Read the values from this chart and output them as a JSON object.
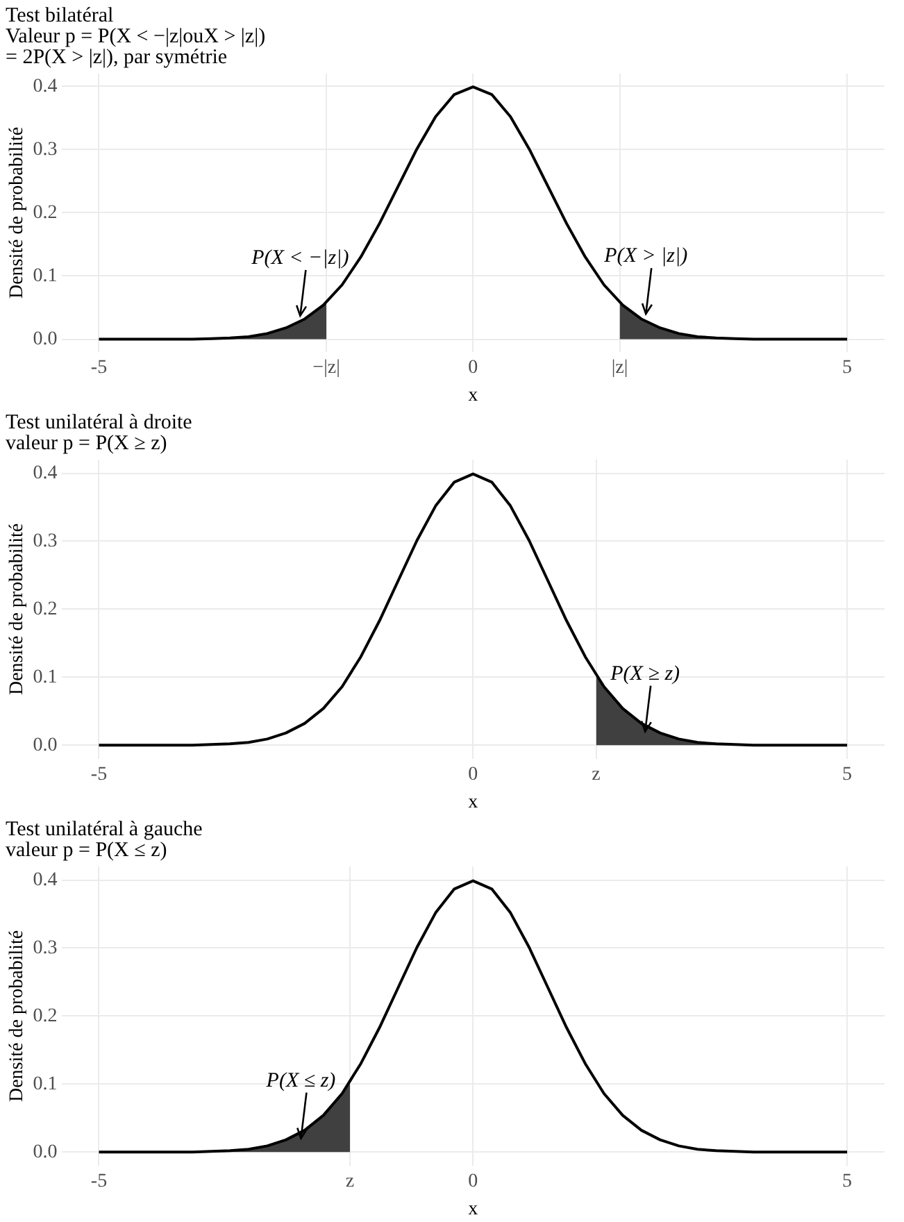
{
  "chart_data": [
    {
      "type": "line",
      "title": "Test bilatéral",
      "subtitle": "Valeur p = P(X < −|z|ouX > |z|)\n= 2P(X > |z|), par symétrie",
      "xlabel": "x",
      "ylabel": "Densité de probabilité",
      "xlim": [
        -5.5,
        5.5
      ],
      "ylim": [
        -0.02,
        0.42
      ],
      "xticks": [
        -5,
        {
          "value": -1.96,
          "label": "−|z|"
        },
        0,
        {
          "value": 1.96,
          "label": "|z|"
        },
        5
      ],
      "yticks": [
        {
          "value": 0,
          "label": "0.0"
        },
        {
          "value": 0.1,
          "label": "0.1"
        },
        {
          "value": 0.2,
          "label": "0.2"
        },
        {
          "value": 0.3,
          "label": "0.3"
        },
        {
          "value": 0.4,
          "label": "0.4"
        }
      ],
      "grid": true,
      "legend": false,
      "marker": "none",
      "line_style": "solid",
      "series": [
        {
          "type": "line",
          "color": "#000000",
          "x": [
            -5,
            -4.75,
            -4.5,
            -4.25,
            -4,
            -3.75,
            -3.5,
            -3.25,
            -3,
            -2.75,
            -2.5,
            -2.25,
            -2,
            -1.75,
            -1.5,
            -1.25,
            -1,
            -0.75,
            -0.5,
            -0.25,
            0,
            0.25,
            0.5,
            0.75,
            1,
            1.25,
            1.5,
            1.75,
            2,
            2.25,
            2.5,
            2.75,
            3,
            3.25,
            3.5,
            3.75,
            4,
            4.25,
            4.5,
            4.75,
            5
          ],
          "values": [
            0,
            0,
            0,
            0,
            0,
            0,
            0.001,
            0.002,
            0.004,
            0.009,
            0.018,
            0.032,
            0.054,
            0.086,
            0.13,
            0.183,
            0.242,
            0.301,
            0.352,
            0.387,
            0.399,
            0.387,
            0.352,
            0.301,
            0.242,
            0.183,
            0.13,
            0.086,
            0.054,
            0.032,
            0.018,
            0.009,
            0.004,
            0.002,
            0.001,
            0,
            0,
            0,
            0,
            0,
            0
          ]
        },
        {
          "type": "area",
          "color": "#404040",
          "x": [
            -5,
            -4.5,
            -4,
            -3.5,
            -3,
            -2.75,
            -2.5,
            -2.25,
            -1.96
          ],
          "values": [
            0,
            0,
            0,
            0.001,
            0.004,
            0.009,
            0.018,
            0.032,
            0.058
          ]
        },
        {
          "type": "area",
          "color": "#404040",
          "x": [
            1.96,
            2.25,
            2.5,
            2.75,
            3,
            3.5,
            4,
            4.5,
            5
          ],
          "values": [
            0.058,
            0.032,
            0.018,
            0.009,
            0.004,
            0.001,
            0,
            0,
            0
          ]
        }
      ],
      "annotations": [
        {
          "text": "P(X < −|z|)",
          "x": -2.31,
          "y": 0.037
        },
        {
          "text": "P(X > |z|)",
          "x": 2.31,
          "y": 0.04
        }
      ]
    },
    {
      "type": "line",
      "title": "Test unilatéral à droite",
      "subtitle": "valeur p = P(X ≥ z)",
      "xlabel": "x",
      "ylabel": "Densité de probabilité",
      "xlim": [
        -5.5,
        5.5
      ],
      "ylim": [
        -0.02,
        0.42
      ],
      "xticks": [
        -5,
        0,
        {
          "value": 1.645,
          "label": "z"
        },
        5
      ],
      "yticks": [
        {
          "value": 0,
          "label": "0.0"
        },
        {
          "value": 0.1,
          "label": "0.1"
        },
        {
          "value": 0.2,
          "label": "0.2"
        },
        {
          "value": 0.3,
          "label": "0.3"
        },
        {
          "value": 0.4,
          "label": "0.4"
        }
      ],
      "grid": true,
      "legend": false,
      "marker": "none",
      "line_style": "solid",
      "series": [
        {
          "type": "line",
          "color": "#000000",
          "x": [
            -5,
            -4.75,
            -4.5,
            -4.25,
            -4,
            -3.75,
            -3.5,
            -3.25,
            -3,
            -2.75,
            -2.5,
            -2.25,
            -2,
            -1.75,
            -1.5,
            -1.25,
            -1,
            -0.75,
            -0.5,
            -0.25,
            0,
            0.25,
            0.5,
            0.75,
            1,
            1.25,
            1.5,
            1.75,
            2,
            2.25,
            2.5,
            2.75,
            3,
            3.25,
            3.5,
            3.75,
            4,
            4.25,
            4.5,
            4.75,
            5
          ],
          "values": [
            0,
            0,
            0,
            0,
            0,
            0,
            0.001,
            0.002,
            0.004,
            0.009,
            0.018,
            0.032,
            0.054,
            0.086,
            0.13,
            0.183,
            0.242,
            0.301,
            0.352,
            0.387,
            0.399,
            0.387,
            0.352,
            0.301,
            0.242,
            0.183,
            0.13,
            0.086,
            0.054,
            0.032,
            0.018,
            0.009,
            0.004,
            0.002,
            0.001,
            0,
            0,
            0,
            0,
            0,
            0
          ]
        },
        {
          "type": "area",
          "color": "#404040",
          "x": [
            1.645,
            1.75,
            2,
            2.25,
            2.5,
            2.75,
            3,
            3.5,
            4,
            4.5,
            5
          ],
          "values": [
            0.103,
            0.086,
            0.054,
            0.032,
            0.018,
            0.009,
            0.004,
            0.001,
            0,
            0,
            0
          ]
        }
      ],
      "annotations": [
        {
          "text": "P(X ≥ z)",
          "x": 2.3,
          "y": 0.02
        }
      ]
    },
    {
      "type": "line",
      "title": "Test unilatéral à gauche",
      "subtitle": "valeur p = P(X ≤ z)",
      "xlabel": "x",
      "ylabel": "Densité de probabilité",
      "xlim": [
        -5.5,
        5.5
      ],
      "ylim": [
        -0.02,
        0.42
      ],
      "xticks": [
        -5,
        {
          "value": -1.645,
          "label": "z"
        },
        0,
        5
      ],
      "yticks": [
        {
          "value": 0,
          "label": "0.0"
        },
        {
          "value": 0.1,
          "label": "0.1"
        },
        {
          "value": 0.2,
          "label": "0.2"
        },
        {
          "value": 0.3,
          "label": "0.3"
        },
        {
          "value": 0.4,
          "label": "0.4"
        }
      ],
      "grid": true,
      "legend": false,
      "marker": "none",
      "line_style": "solid",
      "series": [
        {
          "type": "line",
          "color": "#000000",
          "x": [
            -5,
            -4.75,
            -4.5,
            -4.25,
            -4,
            -3.75,
            -3.5,
            -3.25,
            -3,
            -2.75,
            -2.5,
            -2.25,
            -2,
            -1.75,
            -1.5,
            -1.25,
            -1,
            -0.75,
            -0.5,
            -0.25,
            0,
            0.25,
            0.5,
            0.75,
            1,
            1.25,
            1.5,
            1.75,
            2,
            2.25,
            2.5,
            2.75,
            3,
            3.25,
            3.5,
            3.75,
            4,
            4.25,
            4.5,
            4.75,
            5
          ],
          "values": [
            0,
            0,
            0,
            0,
            0,
            0,
            0.001,
            0.002,
            0.004,
            0.009,
            0.018,
            0.032,
            0.054,
            0.086,
            0.13,
            0.183,
            0.242,
            0.301,
            0.352,
            0.387,
            0.399,
            0.387,
            0.352,
            0.301,
            0.242,
            0.183,
            0.13,
            0.086,
            0.054,
            0.032,
            0.018,
            0.009,
            0.004,
            0.002,
            0.001,
            0,
            0,
            0,
            0,
            0,
            0
          ]
        },
        {
          "type": "area",
          "color": "#404040",
          "x": [
            -5,
            -4.5,
            -4,
            -3.5,
            -3,
            -2.75,
            -2.5,
            -2.25,
            -2,
            -1.75,
            -1.645
          ],
          "values": [
            0,
            0,
            0,
            0.001,
            0.004,
            0.009,
            0.018,
            0.032,
            0.054,
            0.086,
            0.103
          ]
        }
      ],
      "annotations": [
        {
          "text": "P(X ≤ z)",
          "x": -2.3,
          "y": 0.02
        }
      ]
    }
  ]
}
